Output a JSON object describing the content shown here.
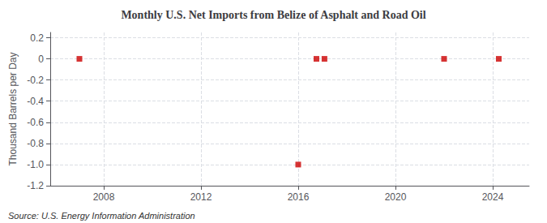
{
  "chart_data": {
    "type": "scatter",
    "title": "Monthly U.S. Net Imports from Belize of Asphalt and Road Oil",
    "ylabel": "Thousand Barrels per Day",
    "annotation": "Source: U.S. Energy Information Administration",
    "x": [
      2007.0,
      2016.0,
      2016.75,
      2017.08,
      2022.0,
      2024.25
    ],
    "values": [
      0.0,
      -1.0,
      0.0,
      0.0,
      0.0,
      0.0
    ],
    "color": "#cc0000",
    "marker": "square",
    "xlim": [
      2005.8,
      2025.5
    ],
    "xticks": [
      2008,
      2012,
      2016,
      2020,
      2024
    ],
    "ylim": [
      -1.2,
      0.25
    ],
    "yticks": [
      0.2,
      0,
      -0.2,
      -0.4,
      -0.6,
      -0.8,
      {
        "value": -1.0,
        "label": "-1.0"
      },
      -1.2
    ],
    "grid": true
  }
}
